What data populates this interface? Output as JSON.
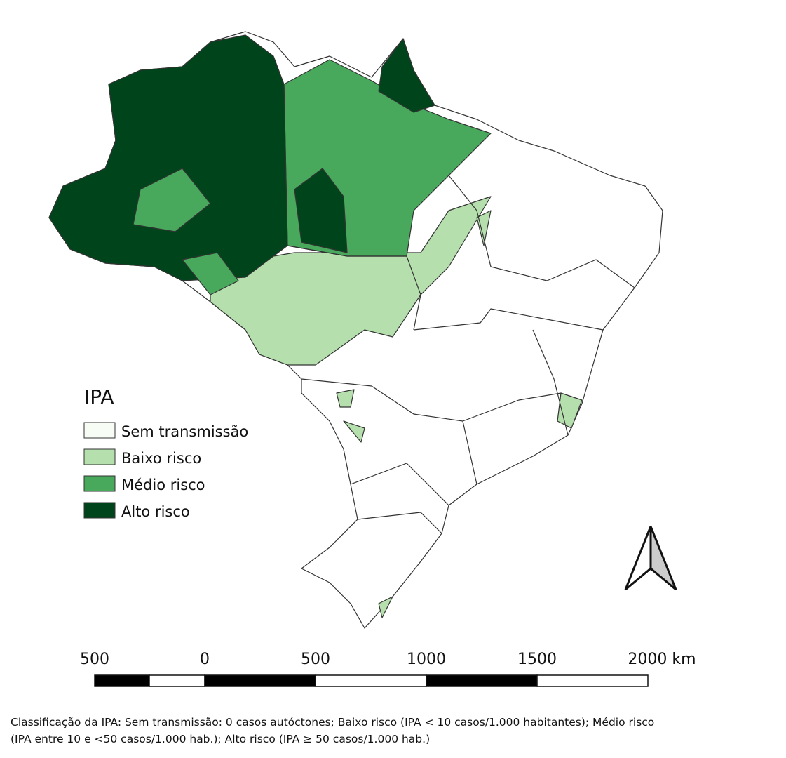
{
  "legend": {
    "title": "IPA",
    "items": [
      "Sem transmissão",
      "Baixo risco",
      "Médio risco",
      "Alto risco"
    ]
  },
  "scale_bar": {
    "labels": [
      "500",
      "0",
      "500",
      "1000",
      "1500",
      "2000 km"
    ]
  },
  "caption": [
    "Classificação da IPA: Sem transmissão: 0 casos autóctones; Baixo risco (IPA < 10 casos/1.000 habitantes); Médio risco",
    "(IPA entre 10 e <50 casos/1.000 hab.); Alto risco (IPA ≥ 50 casos/1.000 hab.)"
  ]
}
